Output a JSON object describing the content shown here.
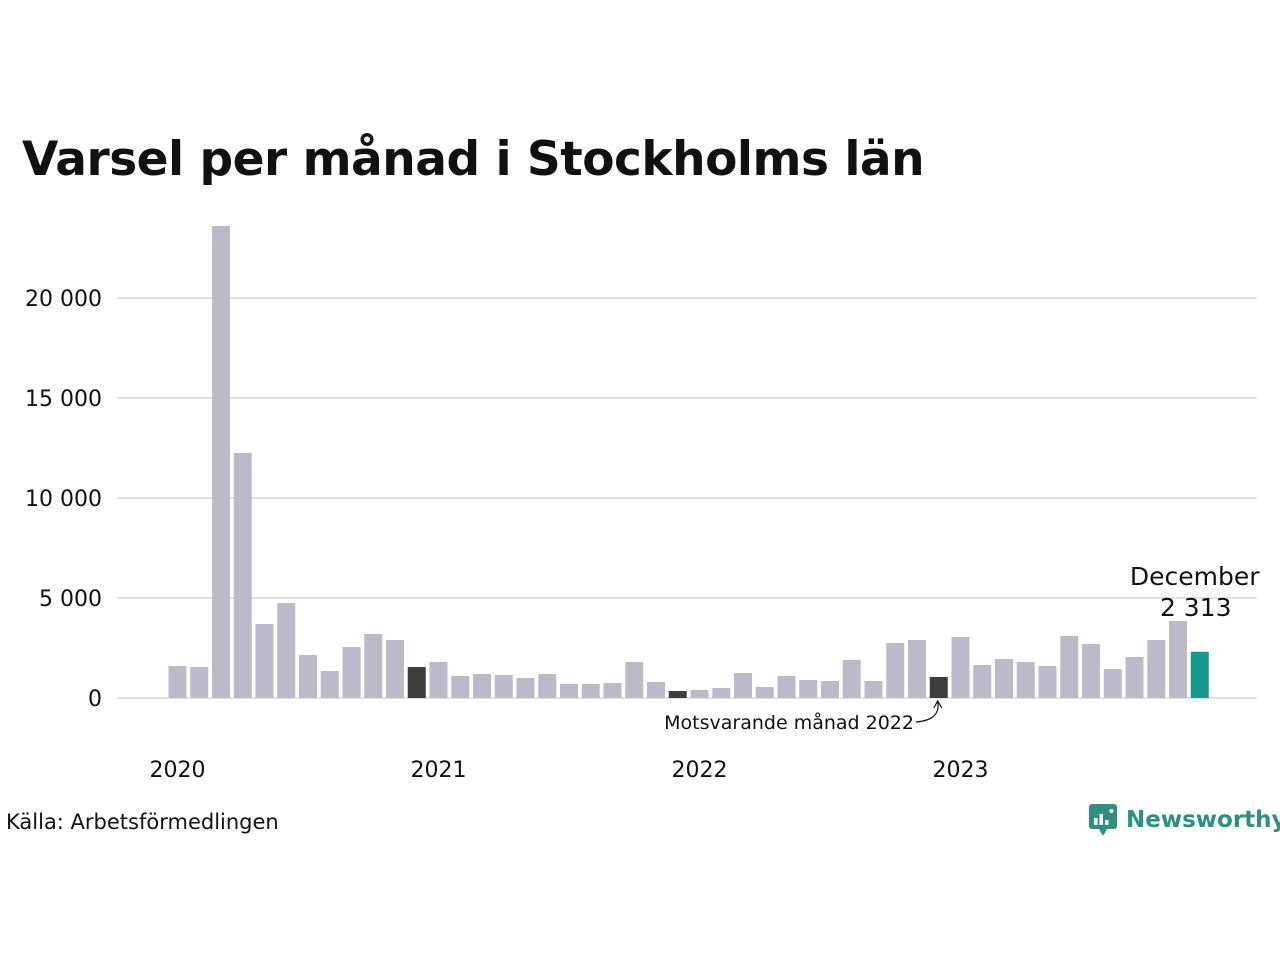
{
  "title": "Varsel per månad i Stockholms län",
  "source": "Källa: Arbetsförmedlingen",
  "brand": {
    "name": "Newsworthy",
    "icon": "newsworthy-logo-icon",
    "color": "#2e8f82"
  },
  "colors": {
    "default": "#bcbac8",
    "comparison": "#3d3d3d",
    "current": "#179a8c",
    "grid": "#e2e2e2"
  },
  "chart_data": {
    "type": "bar",
    "title": "Varsel per månad i Stockholms län",
    "xlabel": "",
    "ylabel": "",
    "ylim": [
      0,
      24000
    ],
    "yticks": [
      0,
      5000,
      10000,
      15000,
      20000
    ],
    "ytick_labels": [
      "0",
      "5 000",
      "10 000",
      "15 000",
      "20 000"
    ],
    "grid": true,
    "xtick_labels": [
      "2020",
      "2021",
      "2022",
      "2023"
    ],
    "categories": [
      "2020-01",
      "2020-02",
      "2020-03",
      "2020-04",
      "2020-05",
      "2020-06",
      "2020-07",
      "2020-08",
      "2020-09",
      "2020-10",
      "2020-11",
      "2020-12",
      "2021-01",
      "2021-02",
      "2021-03",
      "2021-04",
      "2021-05",
      "2021-06",
      "2021-07",
      "2021-08",
      "2021-09",
      "2021-10",
      "2021-11",
      "2021-12",
      "2022-01",
      "2022-02",
      "2022-03",
      "2022-04",
      "2022-05",
      "2022-06",
      "2022-07",
      "2022-08",
      "2022-09",
      "2022-10",
      "2022-11",
      "2022-12",
      "2023-01",
      "2023-02",
      "2023-03",
      "2023-04",
      "2023-05",
      "2023-06",
      "2023-07",
      "2023-08",
      "2023-09",
      "2023-10",
      "2023-11",
      "2023-12"
    ],
    "values": [
      1600,
      1550,
      23600,
      12250,
      3700,
      4750,
      2150,
      1350,
      2550,
      3200,
      2900,
      1550,
      1800,
      1100,
      1200,
      1150,
      1000,
      1200,
      700,
      700,
      750,
      1800,
      800,
      350,
      400,
      500,
      1250,
      550,
      1100,
      900,
      850,
      1900,
      850,
      2750,
      2900,
      1050,
      3050,
      1650,
      1950,
      1800,
      1600,
      3100,
      2700,
      1450,
      2050,
      2900,
      3850,
      2313
    ],
    "highlights": {
      "comparison": [
        "2020-12",
        "2021-12",
        "2022-12"
      ],
      "current": "2023-12"
    },
    "annotations": {
      "current_label_line1": "December",
      "current_label_line2": "2 313",
      "comparison_label": "Motsvarande månad 2022"
    }
  }
}
